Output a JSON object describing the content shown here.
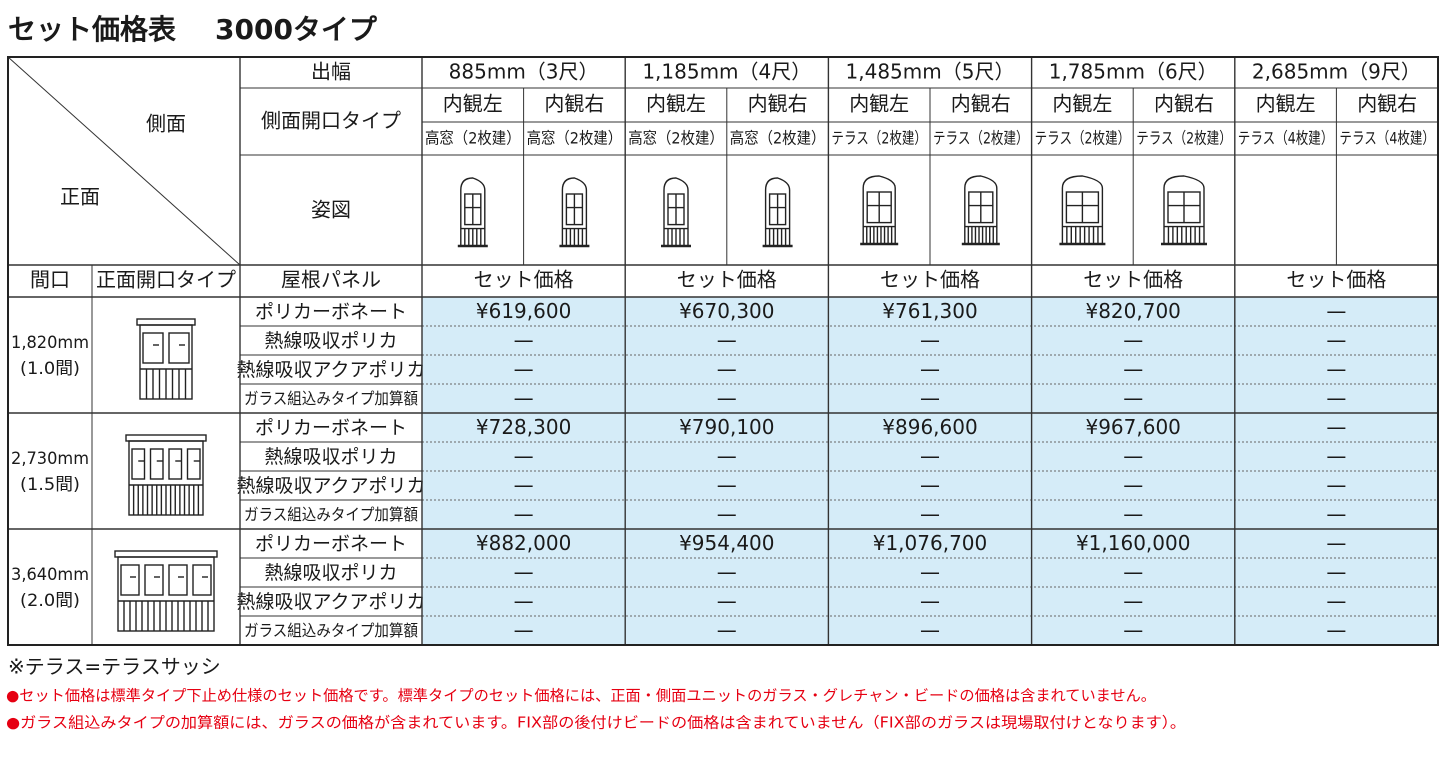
{
  "title": {
    "main": "セット価格表",
    "type": "3000タイプ"
  },
  "table": {
    "corner": {
      "side": "側面",
      "front": "正面"
    },
    "header": {
      "width_label": "出幅",
      "side_type_label": "側面開口タイプ",
      "figure_label": "姿図",
      "roof_label": "屋根パネル",
      "frontage_label": "間口",
      "front_type_label": "正面開口タイプ"
    },
    "widths": [
      {
        "label": "885mm（3尺）",
        "views": [
          "内観左",
          "内観右"
        ],
        "types": [
          "高窓（2枚建）",
          "高窓（2枚建）"
        ],
        "price_label": "セット価格"
      },
      {
        "label": "1,185mm（4尺）",
        "views": [
          "内観左",
          "内観右"
        ],
        "types": [
          "高窓（2枚建）",
          "高窓（2枚建）"
        ],
        "price_label": "セット価格"
      },
      {
        "label": "1,485mm（5尺）",
        "views": [
          "内観左",
          "内観右"
        ],
        "types": [
          "テラス（2枚建）",
          "テラス（2枚建）"
        ],
        "price_label": "セット価格"
      },
      {
        "label": "1,785mm（6尺）",
        "views": [
          "内観左",
          "内観右"
        ],
        "types": [
          "テラス（2枚建）",
          "テラス（2枚建）"
        ],
        "price_label": "セット価格"
      },
      {
        "label": "2,685mm（9尺）",
        "views": [
          "内観左",
          "内観右"
        ],
        "types": [
          "テラス（4枚建）",
          "テラス（4枚建）"
        ],
        "price_label": "セット価格"
      }
    ],
    "groups": [
      {
        "frontage": [
          "1,820mm",
          "(1.0間)"
        ],
        "rows": [
          {
            "panel": "ポリカーボネート",
            "prices": [
              "¥619,600",
              "¥670,300",
              "¥761,300",
              "¥820,700",
              "—"
            ]
          },
          {
            "panel": "熱線吸収ポリカ",
            "prices": [
              "—",
              "—",
              "—",
              "—",
              "—"
            ]
          },
          {
            "panel": "熱線吸収アクアポリカ",
            "prices": [
              "—",
              "—",
              "—",
              "—",
              "—"
            ]
          },
          {
            "panel": "ガラス組込みタイプ加算額",
            "prices": [
              "—",
              "—",
              "—",
              "—",
              "—"
            ]
          }
        ]
      },
      {
        "frontage": [
          "2,730mm",
          "(1.5間)"
        ],
        "rows": [
          {
            "panel": "ポリカーボネート",
            "prices": [
              "¥728,300",
              "¥790,100",
              "¥896,600",
              "¥967,600",
              "—"
            ]
          },
          {
            "panel": "熱線吸収ポリカ",
            "prices": [
              "—",
              "—",
              "—",
              "—",
              "—"
            ]
          },
          {
            "panel": "熱線吸収アクアポリカ",
            "prices": [
              "—",
              "—",
              "—",
              "—",
              "—"
            ]
          },
          {
            "panel": "ガラス組込みタイプ加算額",
            "prices": [
              "—",
              "—",
              "—",
              "—",
              "—"
            ]
          }
        ]
      },
      {
        "frontage": [
          "3,640mm",
          "(2.0間)"
        ],
        "rows": [
          {
            "panel": "ポリカーボネート",
            "prices": [
              "¥882,000",
              "¥954,400",
              "¥1,076,700",
              "¥1,160,000",
              "—"
            ]
          },
          {
            "panel": "熱線吸収ポリカ",
            "prices": [
              "—",
              "—",
              "—",
              "—",
              "—"
            ]
          },
          {
            "panel": "熱線吸収アクアポリカ",
            "prices": [
              "—",
              "—",
              "—",
              "—",
              "—"
            ]
          },
          {
            "panel": "ガラス組込みタイプ加算額",
            "prices": [
              "—",
              "—",
              "—",
              "—",
              "—"
            ]
          }
        ]
      }
    ]
  },
  "notes": [
    "※テラス=テラスサッシ",
    "●セット価格は標準タイプ下止め仕様のセット価格です。標準タイプのセット価格には、正面・側面ユニットのガラス・グレチャン・ビードの価格は含まれていません。",
    "●ガラス組込みタイプの加算額には、ガラスの価格が含まれています。FIX部の後付けビードの価格は含まれていません（FIX部のガラスは現場取付けとなります）。"
  ]
}
